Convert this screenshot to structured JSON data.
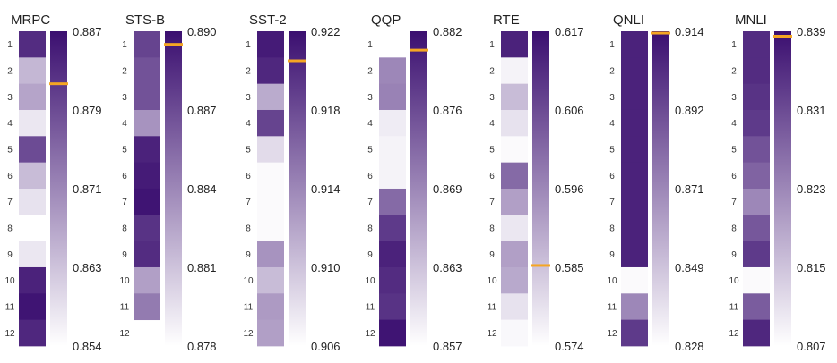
{
  "chart_data": {
    "type": "heatmap",
    "colors": {
      "high": "#3b0f70",
      "low": "#ffffff",
      "marker": "#f5a623"
    },
    "layer_labels": [
      "1",
      "2",
      "3",
      "4",
      "5",
      "6",
      "7",
      "8",
      "9",
      "10",
      "11",
      "12"
    ],
    "panels": [
      {
        "title": "MRPC",
        "ticks": [
          "0.887",
          "0.879",
          "0.871",
          "0.863",
          "0.854"
        ],
        "range": [
          0.854,
          0.887
        ],
        "marker": 0.8815,
        "layers": [
          0.88,
          0.3,
          0.38,
          0.1,
          0.75,
          0.28,
          0.12,
          0.0,
          0.1,
          0.92,
          0.98,
          0.9
        ]
      },
      {
        "title": "STS-B",
        "ticks": [
          "0.890",
          "0.887",
          "0.884",
          "0.881",
          "0.878"
        ],
        "range": [
          0.878,
          0.89
        ],
        "marker": 0.8895,
        "layers": [
          0.78,
          0.72,
          0.72,
          0.45,
          0.92,
          0.95,
          0.98,
          0.85,
          0.88,
          0.4,
          0.55,
          null
        ]
      },
      {
        "title": "SST-2",
        "ticks": [
          "0.922",
          "0.918",
          "0.914",
          "0.910",
          "0.906"
        ],
        "range": [
          0.906,
          0.922
        ],
        "marker": 0.9205,
        "layers": [
          0.95,
          0.9,
          0.35,
          0.78,
          0.15,
          0.02,
          0.02,
          0.02,
          0.45,
          0.28,
          0.42,
          0.4
        ]
      },
      {
        "title": "QQP",
        "ticks": [
          "0.882",
          "0.876",
          "0.869",
          "0.863",
          "0.857"
        ],
        "range": [
          0.857,
          0.882
        ],
        "marker": 0.8805,
        "layers": [
          null,
          0.5,
          0.52,
          0.08,
          0.05,
          0.05,
          0.62,
          0.82,
          0.92,
          0.88,
          0.85,
          0.98
        ]
      },
      {
        "title": "RTE",
        "ticks": [
          "0.617",
          "0.606",
          "0.596",
          "0.585",
          "0.574"
        ],
        "range": [
          0.574,
          0.617
        ],
        "marker": 0.585,
        "layers": [
          0.92,
          0.05,
          0.28,
          0.12,
          0.02,
          0.62,
          0.4,
          0.1,
          0.4,
          0.36,
          0.12,
          0.03
        ]
      },
      {
        "title": "QNLI",
        "ticks": [
          "0.914",
          "0.892",
          "0.871",
          "0.849",
          "0.828"
        ],
        "range": [
          0.828,
          0.914
        ],
        "marker": 0.9135,
        "layers": [
          0.92,
          0.92,
          0.92,
          0.92,
          0.92,
          0.92,
          0.92,
          0.92,
          0.92,
          0.02,
          0.5,
          0.82
        ]
      },
      {
        "title": "MNLI",
        "ticks": [
          "0.839",
          "0.831",
          "0.823",
          "0.815",
          "0.807"
        ],
        "range": [
          0.807,
          0.839
        ],
        "marker": 0.8385,
        "layers": [
          0.88,
          0.88,
          0.85,
          0.82,
          0.72,
          0.65,
          0.5,
          0.7,
          0.82,
          0.02,
          0.68,
          0.9
        ]
      }
    ]
  }
}
